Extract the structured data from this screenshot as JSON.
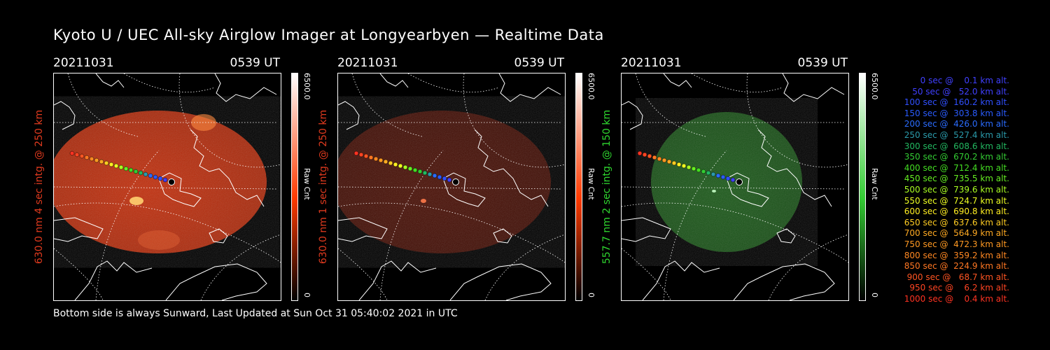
{
  "title": "Kyoto U / UEC All-sky Airglow Imager at Longyearbyen — Realtime Data",
  "footer": "Bottom side is always Sunward, Last Updated at Sun Oct 31 05:40:02 2021 in UTC",
  "panels": [
    {
      "date": "20211031",
      "time": "0539 UT",
      "ylabel": "630.0 nm 4 sec intg. @ 250 km",
      "label_color": "#e03a1e",
      "sky_color": "#c2300e",
      "cbar_color": "#ff3a00",
      "cbar_max": "6500.0",
      "cbar_unit": "Raw Cnt",
      "cbar_min": "0"
    },
    {
      "date": "20211031",
      "time": "0539 UT",
      "ylabel": "630.0 nm 1 sec intg. @ 250 km",
      "label_color": "#e03a1e",
      "sky_color": "#4a1006",
      "cbar_color": "#ff3a00",
      "cbar_max": "6500.0",
      "cbar_unit": "Raw Cnt",
      "cbar_min": "0"
    },
    {
      "date": "20211031",
      "time": "0539 UT",
      "ylabel": "557.7 nm 2 sec intg. @ 150 km",
      "label_color": "#2fd82f",
      "sky_color": "#1c5a1a",
      "cbar_color": "#33cc33",
      "cbar_max": "6500.0",
      "cbar_unit": "Raw Cnt",
      "cbar_min": "0"
    }
  ],
  "legend": [
    {
      "text": "   0 sec @    0.1 km alt.",
      "color": "#4040ff"
    },
    {
      "text": "  50 sec @   52.0 km alt.",
      "color": "#4040ff"
    },
    {
      "text": " 100 sec @  160.2 km alt.",
      "color": "#3050ff"
    },
    {
      "text": " 150 sec @  303.8 km alt.",
      "color": "#2a5cff"
    },
    {
      "text": " 200 sec @  426.0 km alt.",
      "color": "#2a6cff"
    },
    {
      "text": " 250 sec @  527.4 km alt.",
      "color": "#2a9aaa"
    },
    {
      "text": " 300 sec @  608.6 km alt.",
      "color": "#22b860"
    },
    {
      "text": " 350 sec @  670.2 km alt.",
      "color": "#33cc33"
    },
    {
      "text": " 400 sec @  712.4 km alt.",
      "color": "#44dd22"
    },
    {
      "text": " 450 sec @  735.5 km alt.",
      "color": "#66ee22"
    },
    {
      "text": " 500 sec @  739.6 km alt.",
      "color": "#aaff22"
    },
    {
      "text": " 550 sec @  724.7 km alt.",
      "color": "#eeff22"
    },
    {
      "text": " 600 sec @  690.8 km alt.",
      "color": "#ffee22"
    },
    {
      "text": " 650 sec @  637.6 km alt.",
      "color": "#ffcc22"
    },
    {
      "text": " 700 sec @  564.9 km alt.",
      "color": "#ffaa22"
    },
    {
      "text": " 750 sec @  472.3 km alt.",
      "color": "#ff9922"
    },
    {
      "text": " 800 sec @  359.2 km alt.",
      "color": "#ff8822"
    },
    {
      "text": " 850 sec @  224.9 km alt.",
      "color": "#ff7722"
    },
    {
      "text": " 900 sec @   68.7 km alt.",
      "color": "#ff5522"
    },
    {
      "text": " 950 sec @    6.2 km alt.",
      "color": "#ff4422"
    },
    {
      "text": "1000 sec @    0.4 km alt.",
      "color": "#ff3322"
    }
  ],
  "icons": {
    "station": "station-marker-icon"
  }
}
